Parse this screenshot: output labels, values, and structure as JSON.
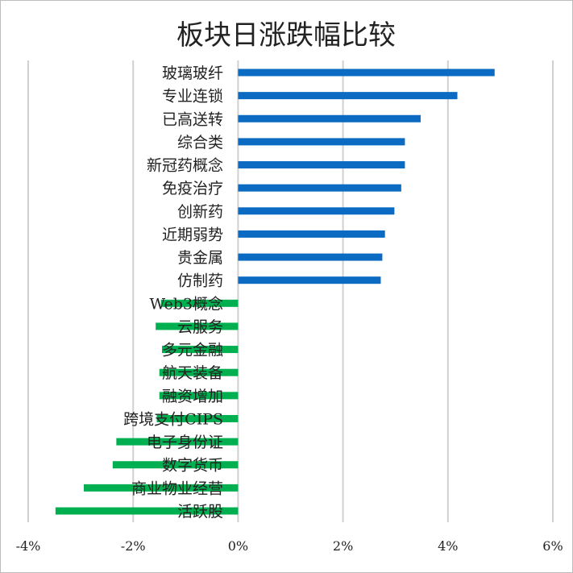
{
  "chart_data": {
    "type": "bar",
    "orientation": "horizontal",
    "title": "板块日涨跌幅比较",
    "categories": [
      "玻璃玻纤",
      "专业连锁",
      "已高送转",
      "综合类",
      "新冠药概念",
      "免疫治疗",
      "创新药",
      "近期弱势",
      "贵金属",
      "仿制药",
      "Web3概念",
      "云服务",
      "多元金融",
      "航天装备",
      "融资增加",
      "跨境支付CIPS",
      "电子身份证",
      "数字货币",
      "商业物业经营",
      "活跃股"
    ],
    "values": [
      4.89,
      4.18,
      3.48,
      3.18,
      3.18,
      3.11,
      2.98,
      2.8,
      2.75,
      2.72,
      -1.47,
      -1.57,
      -1.45,
      -1.5,
      -1.5,
      -1.55,
      -2.32,
      -2.39,
      -2.94,
      -3.48
    ],
    "unit": "%",
    "xlim": [
      -4,
      6
    ],
    "xticks": [
      "-4%",
      "-2%",
      "0%",
      "2%",
      "4%",
      "6%"
    ],
    "grid": true,
    "colors": {
      "positive": "#0b6bc2",
      "negative": "#00b050",
      "grid": "#d0d0d0"
    }
  }
}
